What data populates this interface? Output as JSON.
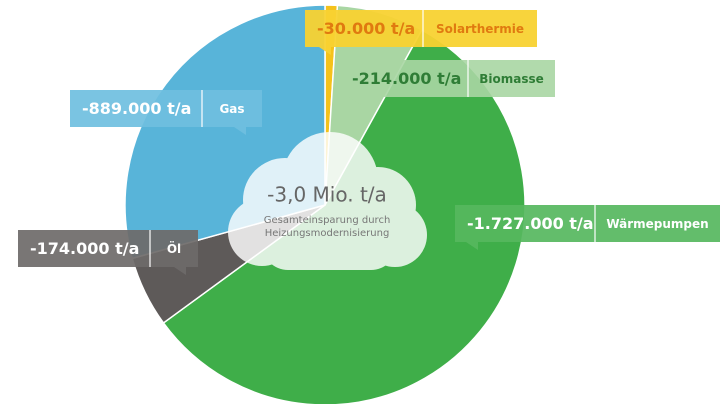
{
  "chart_data": {
    "type": "pie",
    "categories": [
      "Solarthermie",
      "Biomasse",
      "Wärmepumpen",
      "Öl",
      "Gas"
    ],
    "values": [
      -30000,
      -214000,
      -1727000,
      -174000,
      -889000
    ],
    "value_labels": [
      "-30.000 t/a",
      "-214.000 t/a",
      "-1.727.000 t/a",
      "-174.000 t/a",
      "-889.000 t/a"
    ],
    "colors": [
      "#f5c21b",
      "#a9d6a3",
      "#3fae49",
      "#5e5a59",
      "#58b4d9"
    ],
    "center_label": "-3,0 Mio. t/a",
    "center_caption": [
      "Gesamteinsparung durch",
      "Heizungsmodernisierung"
    ]
  }
}
